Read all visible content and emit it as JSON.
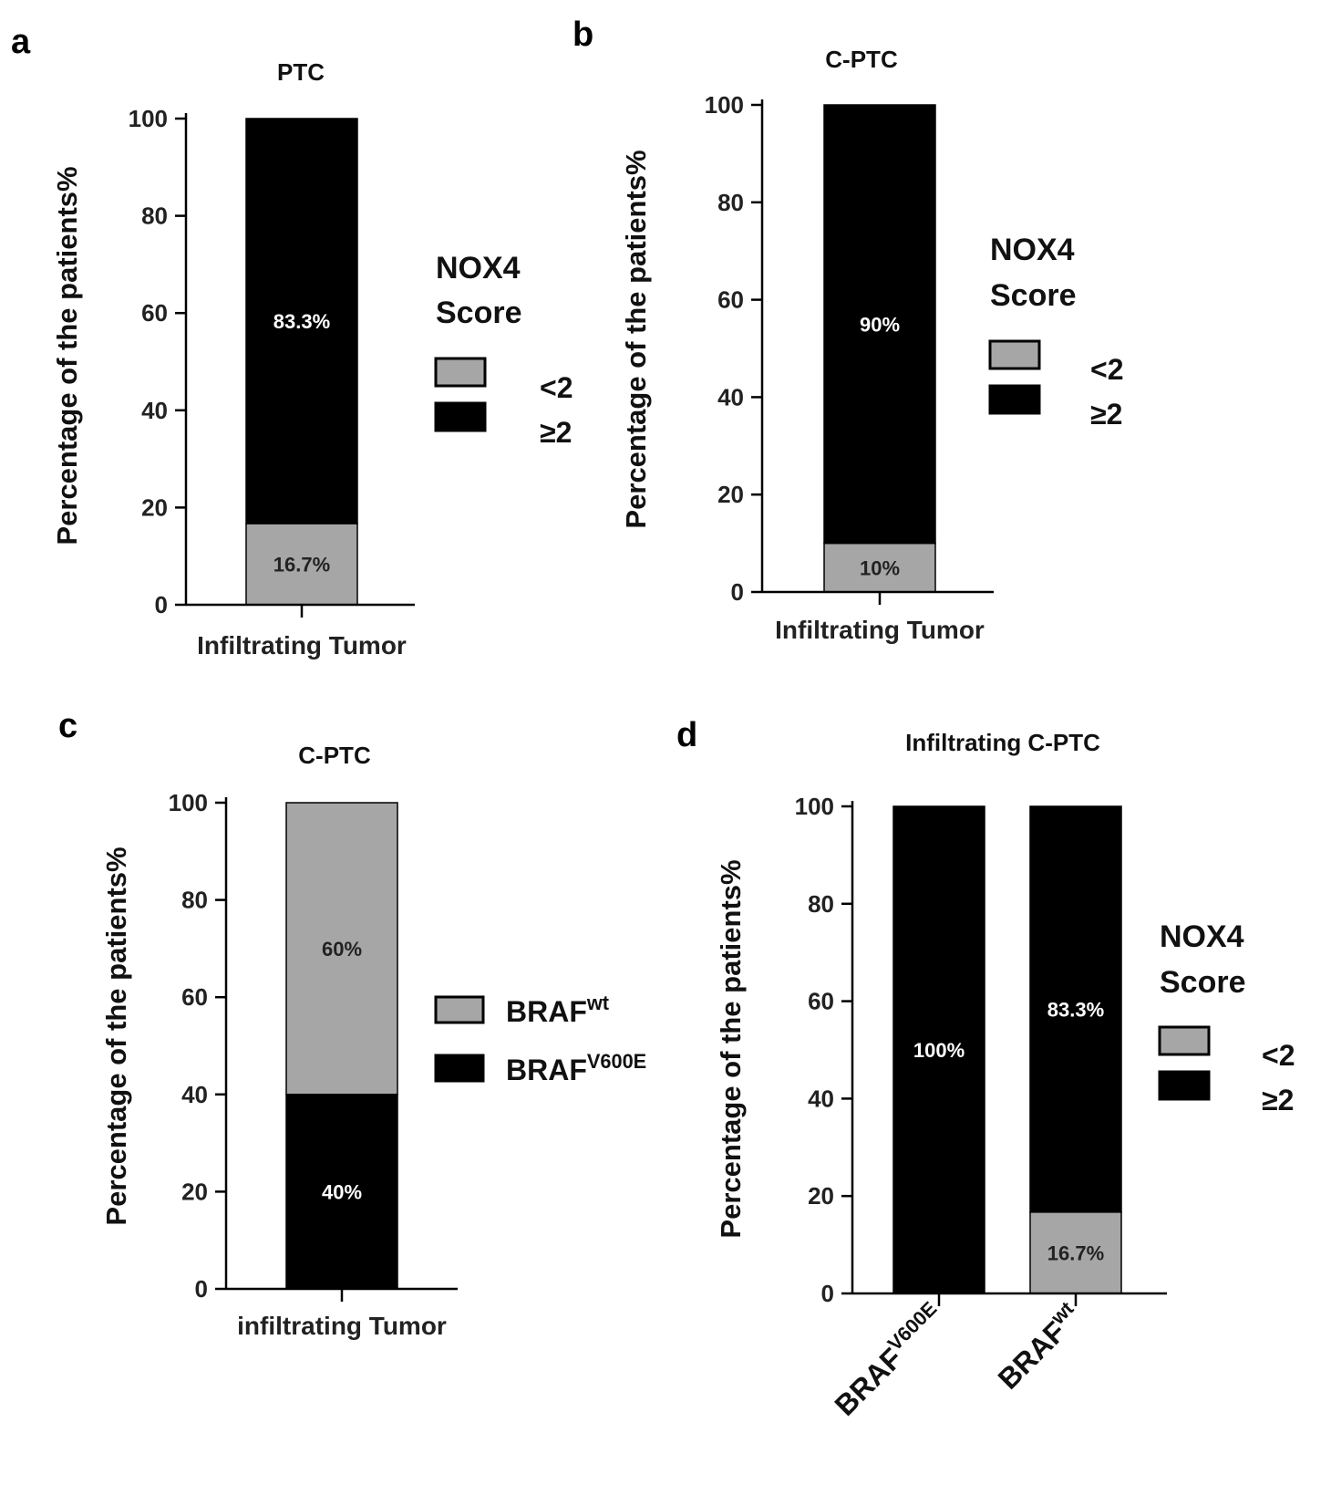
{
  "chart_data": [
    {
      "panel": "a",
      "type": "bar",
      "stacked": true,
      "title": "PTC",
      "ylabel": "Percentage of the patients%",
      "ylim": [
        0,
        100
      ],
      "yticks": [
        "0",
        "20",
        "40",
        "60",
        "80",
        "100"
      ],
      "categories": [
        "Infiltrating Tumor"
      ],
      "series": [
        {
          "name": "<2",
          "values": [
            16.7
          ],
          "labels": [
            "16.7%"
          ],
          "color": "#a6a6a6",
          "text_color": "#222222"
        },
        {
          "name": "≥2",
          "values": [
            83.3
          ],
          "labels": [
            "83.3%"
          ],
          "color": "#000000",
          "text_color": "#ffffff"
        }
      ],
      "legend": {
        "title": [
          "NOX4",
          "Score"
        ],
        "items": [
          "<2",
          "≥2"
        ],
        "placement": "right"
      }
    },
    {
      "panel": "b",
      "type": "bar",
      "stacked": true,
      "title": "C-PTC",
      "ylabel": "Percentage of the patients%",
      "ylim": [
        0,
        100
      ],
      "yticks": [
        "0",
        "20",
        "40",
        "60",
        "80",
        "100"
      ],
      "categories": [
        "Infiltrating Tumor"
      ],
      "series": [
        {
          "name": "<2",
          "values": [
            10
          ],
          "labels": [
            "10%"
          ],
          "color": "#a6a6a6",
          "text_color": "#222222"
        },
        {
          "name": "≥2",
          "values": [
            90
          ],
          "labels": [
            "90%"
          ],
          "color": "#000000",
          "text_color": "#ffffff"
        }
      ],
      "legend": {
        "title": [
          "NOX4",
          "Score"
        ],
        "items": [
          "<2",
          "≥2"
        ],
        "placement": "right"
      }
    },
    {
      "panel": "c",
      "type": "bar",
      "stacked": true,
      "title": "C-PTC",
      "ylabel": "Percentage of the patients%",
      "ylim": [
        0,
        100
      ],
      "yticks": [
        "0",
        "20",
        "40",
        "60",
        "80",
        "100"
      ],
      "categories": [
        "infiltrating Tumor"
      ],
      "series": [
        {
          "name": "BRAF^V600E",
          "values": [
            40
          ],
          "labels": [
            "40%"
          ],
          "color": "#000000",
          "text_color": "#ffffff"
        },
        {
          "name": "BRAF^wt",
          "values": [
            60
          ],
          "labels": [
            "60%"
          ],
          "color": "#a6a6a6",
          "text_color": "#222222"
        }
      ],
      "legend": {
        "title": [],
        "items": [
          "BRAF^wt",
          "BRAF^V600E"
        ],
        "placement": "right"
      }
    },
    {
      "panel": "d",
      "type": "bar",
      "stacked": true,
      "title": "Infiltrating C-PTC",
      "ylabel": "Percentage of the patients%",
      "ylim": [
        0,
        100
      ],
      "yticks": [
        "0",
        "20",
        "40",
        "60",
        "80",
        "100"
      ],
      "categories": [
        "BRAF^V600E",
        "BRAF^wt"
      ],
      "series": [
        {
          "name": "<2",
          "values": [
            0,
            16.7
          ],
          "labels": [
            "",
            "16.7%"
          ],
          "color": "#a6a6a6",
          "text_color": "#222222"
        },
        {
          "name": "≥2",
          "values": [
            100,
            83.3
          ],
          "labels": [
            "100%",
            "83.3%"
          ],
          "color": "#000000",
          "text_color": "#ffffff"
        }
      ],
      "legend": {
        "title": [
          "NOX4",
          "Score"
        ],
        "items": [
          "<2",
          "≥2"
        ],
        "placement": "right"
      }
    }
  ]
}
